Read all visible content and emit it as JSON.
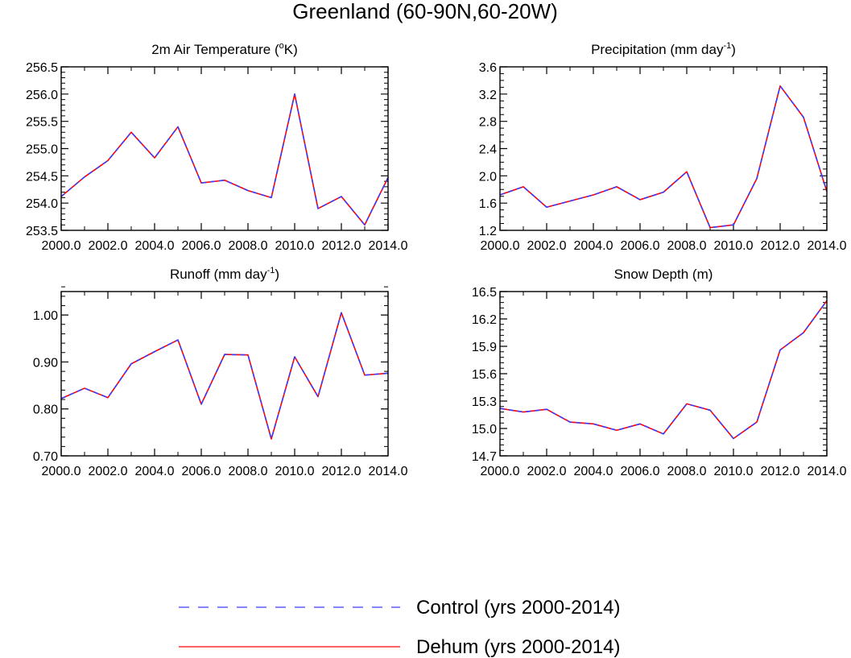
{
  "figure": {
    "title": "Greenland (60-90N,60-20W)"
  },
  "legend": {
    "placement": "bottom-center",
    "entries": [
      {
        "label": "Control (yrs 2000-2014)",
        "color": "#3b3bff",
        "style": "dashed"
      },
      {
        "label": "Dehum (yrs 2000-2014)",
        "color": "#ff0000",
        "style": "solid"
      }
    ]
  },
  "chart_data": [
    {
      "type": "line",
      "title": "2m Air Temperature (",
      "title_sup": "o",
      "title_after": "K)",
      "x": [
        2000,
        2001,
        2002,
        2003,
        2004,
        2005,
        2006,
        2007,
        2008,
        2009,
        2010,
        2011,
        2012,
        2013,
        2014
      ],
      "xlim": [
        2000,
        2014
      ],
      "xticks": [
        2000,
        2002,
        2004,
        2006,
        2008,
        2010,
        2012,
        2014
      ],
      "xtick_labels": [
        "2000.0",
        "2002.0",
        "2004.0",
        "2006.0",
        "2008.0",
        "2010.0",
        "2012.0",
        "2014.0"
      ],
      "ylim": [
        253.5,
        256.5
      ],
      "yticks": [
        253.5,
        254.0,
        254.5,
        255.0,
        255.5,
        256.0,
        256.5
      ],
      "ytick_labels": [
        "253.5",
        "254.0",
        "254.5",
        "255.0",
        "255.5",
        "256.0",
        "256.5"
      ],
      "yminor_step": 0.1,
      "series": [
        {
          "name": "Control (yrs 2000-2014)",
          "color": "#3b3bff",
          "style": "dashed",
          "values": [
            254.12,
            254.48,
            254.78,
            255.3,
            254.83,
            255.4,
            254.37,
            254.42,
            254.23,
            254.1,
            256.0,
            253.9,
            254.12,
            253.6,
            254.47
          ]
        },
        {
          "name": "Dehum (yrs 2000-2014)",
          "color": "#ff0000",
          "style": "solid",
          "values": [
            254.12,
            254.48,
            254.78,
            255.3,
            254.83,
            255.4,
            254.37,
            254.42,
            254.23,
            254.1,
            256.0,
            253.9,
            254.12,
            253.6,
            254.47
          ]
        }
      ]
    },
    {
      "type": "line",
      "title": "Precipitation (mm day",
      "title_sup": "-1",
      "title_after": ")",
      "x": [
        2000,
        2001,
        2002,
        2003,
        2004,
        2005,
        2006,
        2007,
        2008,
        2009,
        2010,
        2011,
        2012,
        2013,
        2014
      ],
      "xlim": [
        2000,
        2014
      ],
      "xticks": [
        2000,
        2002,
        2004,
        2006,
        2008,
        2010,
        2012,
        2014
      ],
      "xtick_labels": [
        "2000.0",
        "2002.0",
        "2004.0",
        "2006.0",
        "2008.0",
        "2010.0",
        "2012.0",
        "2014.0"
      ],
      "ylim": [
        1.2,
        3.6
      ],
      "yticks": [
        1.2,
        1.6,
        2.0,
        2.4,
        2.8,
        3.2,
        3.6
      ],
      "ytick_labels": [
        "1.2",
        "1.6",
        "2.0",
        "2.4",
        "2.8",
        "3.2",
        "3.6"
      ],
      "yminor_step": 0.1,
      "series": [
        {
          "name": "Control (yrs 2000-2014)",
          "color": "#3b3bff",
          "style": "dashed",
          "values": [
            1.72,
            1.84,
            1.54,
            1.63,
            1.72,
            1.84,
            1.65,
            1.76,
            2.06,
            1.24,
            1.28,
            1.96,
            3.32,
            2.86,
            1.77
          ]
        },
        {
          "name": "Dehum (yrs 2000-2014)",
          "color": "#ff0000",
          "style": "solid",
          "values": [
            1.72,
            1.84,
            1.54,
            1.63,
            1.72,
            1.84,
            1.65,
            1.76,
            2.06,
            1.24,
            1.28,
            1.96,
            3.32,
            2.86,
            1.77
          ]
        }
      ]
    },
    {
      "type": "line",
      "title": "Runoff (mm day",
      "title_sup": "-1",
      "title_after": ")",
      "x": [
        2000,
        2001,
        2002,
        2003,
        2004,
        2005,
        2006,
        2007,
        2008,
        2009,
        2010,
        2011,
        2012,
        2013,
        2014
      ],
      "xlim": [
        2000,
        2014
      ],
      "xticks": [
        2000,
        2002,
        2004,
        2006,
        2008,
        2010,
        2012,
        2014
      ],
      "xtick_labels": [
        "2000.0",
        "2002.0",
        "2004.0",
        "2006.0",
        "2008.0",
        "2010.0",
        "2012.0",
        "2014.0"
      ],
      "ylim": [
        0.7,
        1.05
      ],
      "yticks": [
        0.7,
        0.8,
        0.9,
        1.0
      ],
      "ytick_labels": [
        "0.70",
        "0.80",
        "0.90",
        "1.00"
      ],
      "yminor_step": 0.02,
      "series": [
        {
          "name": "Control (yrs 2000-2014)",
          "color": "#3b3bff",
          "style": "dashed",
          "values": [
            0.822,
            0.844,
            0.824,
            0.896,
            0.922,
            0.947,
            0.81,
            0.916,
            0.915,
            0.736,
            0.911,
            0.826,
            1.005,
            0.872,
            0.876
          ]
        },
        {
          "name": "Dehum (yrs 2000-2014)",
          "color": "#ff0000",
          "style": "solid",
          "values": [
            0.822,
            0.844,
            0.824,
            0.896,
            0.922,
            0.947,
            0.81,
            0.916,
            0.915,
            0.736,
            0.911,
            0.826,
            1.005,
            0.872,
            0.876
          ]
        }
      ]
    },
    {
      "type": "line",
      "title": "Snow Depth (m)",
      "title_sup": "",
      "title_after": "",
      "x": [
        2000,
        2001,
        2002,
        2003,
        2004,
        2005,
        2006,
        2007,
        2008,
        2009,
        2010,
        2011,
        2012,
        2013,
        2014
      ],
      "xlim": [
        2000,
        2014
      ],
      "xticks": [
        2000,
        2002,
        2004,
        2006,
        2008,
        2010,
        2012,
        2014
      ],
      "xtick_labels": [
        "2000.0",
        "2002.0",
        "2004.0",
        "2006.0",
        "2008.0",
        "2010.0",
        "2012.0",
        "2014.0"
      ],
      "ylim": [
        14.7,
        16.5
      ],
      "yticks": [
        14.7,
        15.0,
        15.3,
        15.6,
        15.9,
        16.2,
        16.5
      ],
      "ytick_labels": [
        "14.7",
        "15.0",
        "15.3",
        "15.6",
        "15.9",
        "16.2",
        "16.5"
      ],
      "yminor_step": 0.06,
      "series": [
        {
          "name": "Control (yrs 2000-2014)",
          "color": "#3b3bff",
          "style": "dashed",
          "values": [
            15.22,
            15.18,
            15.21,
            15.07,
            15.05,
            14.98,
            15.05,
            14.94,
            15.27,
            15.2,
            14.89,
            15.07,
            15.86,
            16.05,
            16.4
          ]
        },
        {
          "name": "Dehum (yrs 2000-2014)",
          "color": "#ff0000",
          "style": "solid",
          "values": [
            15.22,
            15.18,
            15.21,
            15.07,
            15.05,
            14.98,
            15.05,
            14.94,
            15.27,
            15.2,
            14.89,
            15.07,
            15.86,
            16.05,
            16.4
          ]
        }
      ]
    }
  ]
}
